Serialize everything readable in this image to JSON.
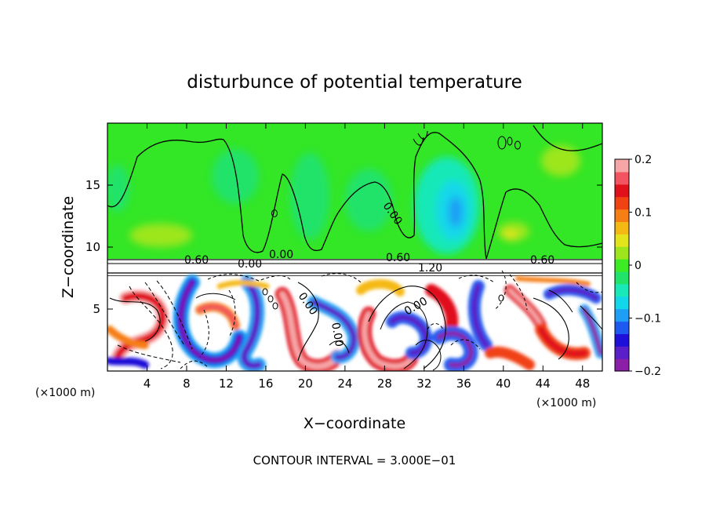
{
  "chart_data": {
    "type": "heatmap",
    "title": "disturbunce of potential temperature",
    "xlabel": "X−coordinate",
    "ylabel": "Z−coordinate",
    "x_unit": "(×1000 m)",
    "y_unit": "(×1000 m)",
    "xlim": [
      0,
      50
    ],
    "ylim": [
      0,
      20
    ],
    "x_ticks": [
      4,
      8,
      12,
      16,
      20,
      24,
      28,
      32,
      36,
      40,
      44,
      48
    ],
    "y_ticks": [
      5,
      10,
      15
    ],
    "colorbar": {
      "range": [
        -0.2,
        0.2
      ],
      "ticks": [
        0.2,
        0.1,
        0,
        -0.1,
        -0.2
      ],
      "tick_labels": [
        "0.2",
        "0.1",
        "0",
        "−0.1",
        "−0.2"
      ],
      "colors": [
        "#8B1FA8",
        "#5A1FC8",
        "#1E10D8",
        "#1F5AF0",
        "#1E9EF5",
        "#12D7EA",
        "#19E8B8",
        "#22E36A",
        "#3CEB24",
        "#9DE61E",
        "#E4E41C",
        "#F5B916",
        "#F57E15",
        "#F04212",
        "#E0111A",
        "#F2555F",
        "#F7A6A8"
      ]
    },
    "contour_labels": [
      "0.60",
      "0.00",
      "0.60",
      "0.60",
      "0.00",
      "0.00",
      "1.20",
      "0.00",
      "0.00",
      "0.00"
    ],
    "footer": "CONTOUR INTERVAL = 3.000E−01"
  }
}
